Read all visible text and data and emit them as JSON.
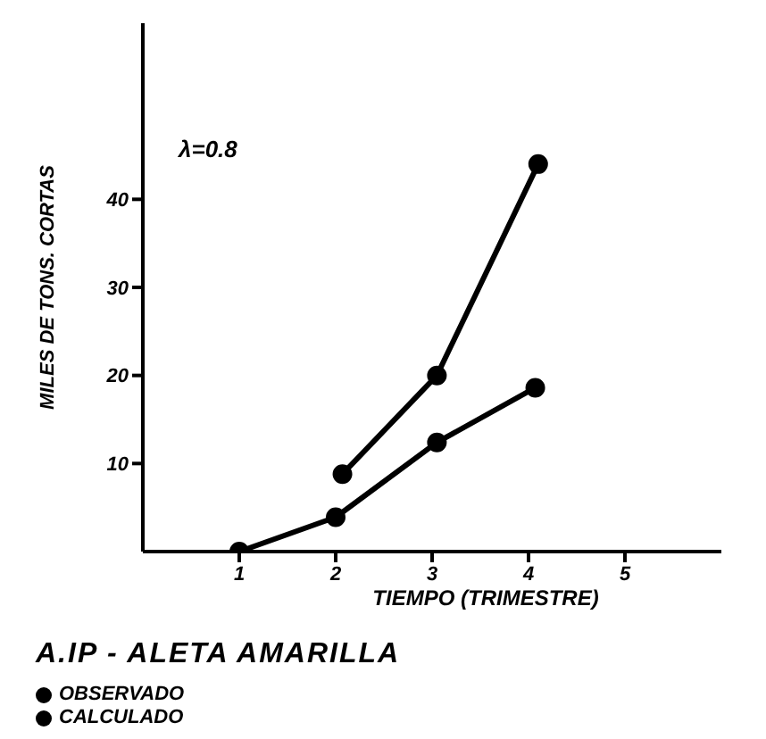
{
  "chart_data": {
    "type": "line",
    "title": "A.IP - ALETA AMARILLA",
    "xlabel": "TIEMPO   (TRIMESTRE)",
    "ylabel": "MILES DE TONS. CORTAS",
    "annotations": [
      {
        "text": "λ=0.8"
      }
    ],
    "series": [
      {
        "name": "OBSERVADO",
        "color": "#000000",
        "x": [
          2.07,
          3.05,
          4.1
        ],
        "values": [
          8.8,
          20,
          44
        ]
      },
      {
        "name": "CALCULADO",
        "color": "#000000",
        "x": [
          1,
          2,
          3.05,
          4.07
        ],
        "values": [
          0,
          3.9,
          12.4,
          18.6
        ]
      }
    ],
    "xlim": [
      0,
      6
    ],
    "xticks": [
      1,
      2,
      3,
      4,
      5
    ],
    "ylim": [
      0,
      60
    ],
    "yticks": [
      10,
      20,
      30,
      40
    ],
    "grid": false,
    "legend": "bottom left",
    "marker": "circle",
    "line_style": "solid"
  }
}
